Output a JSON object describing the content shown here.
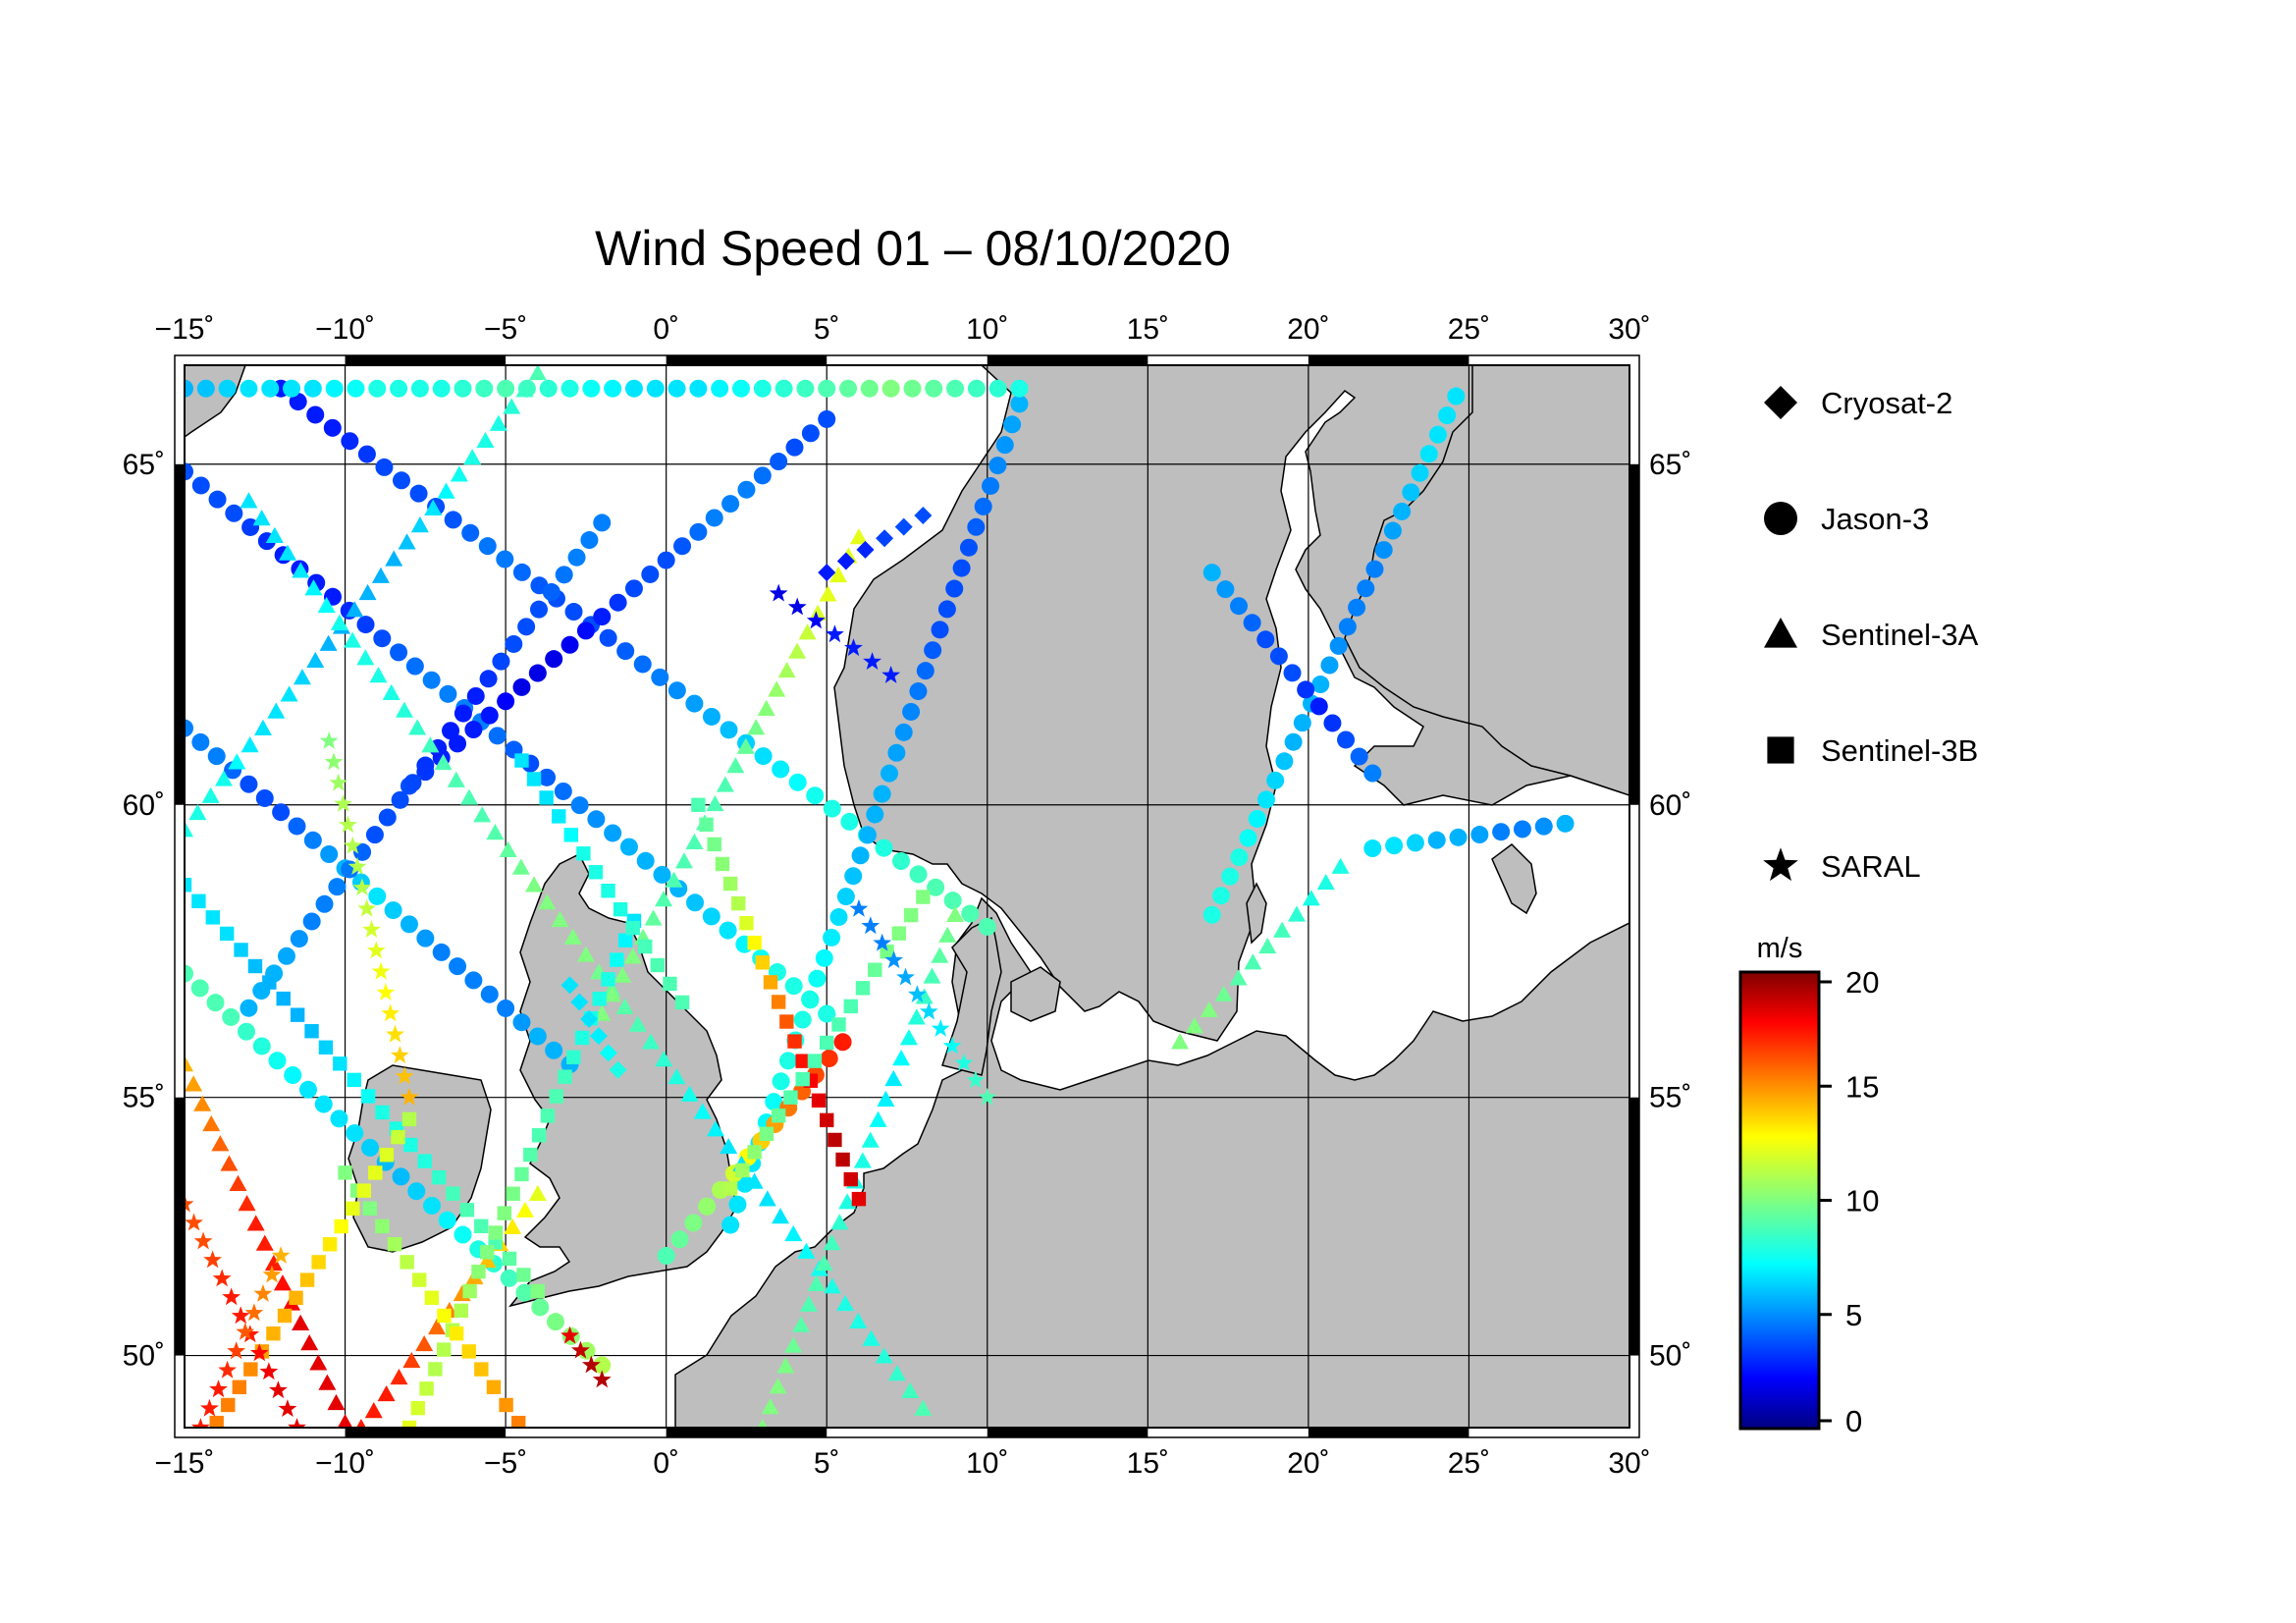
{
  "title": "Wind Speed 01 – 08/10/2020",
  "map": {
    "lon_range": [
      -15,
      30
    ],
    "lat_range": [
      48.5,
      66.3
    ],
    "lon_ticks": [
      -15,
      -10,
      -5,
      0,
      5,
      10,
      15,
      20,
      25,
      30
    ],
    "lat_ticks": [
      50,
      55,
      60,
      65
    ],
    "lon_tick_labels": [
      "−15˚",
      "−10˚",
      "−5˚",
      "0˚",
      "5˚",
      "10˚",
      "15˚",
      "20˚",
      "25˚",
      "30˚"
    ],
    "lat_tick_labels": [
      "50˚",
      "55˚",
      "60˚",
      "65˚"
    ],
    "land_color": "#bebebe",
    "sea_color": "#ffffff"
  },
  "legend": {
    "items": [
      {
        "label": "Cryosat-2",
        "marker": "diamond"
      },
      {
        "label": "Jason-3",
        "marker": "circle"
      },
      {
        "label": "Sentinel-3A",
        "marker": "triangle"
      },
      {
        "label": "Sentinel-3B",
        "marker": "square"
      },
      {
        "label": "SARAL",
        "marker": "star"
      }
    ]
  },
  "colorbar": {
    "unit": "m/s",
    "min": 0,
    "max": 20,
    "ticks": [
      "0",
      "5",
      "10",
      "15",
      "20"
    ],
    "tick_values": [
      0,
      5,
      10,
      15,
      20
    ],
    "colormap": "jet"
  },
  "tracks": [
    {
      "satellite": "Jason-3",
      "marker": "circle",
      "start": [
        -15,
        61.2
      ],
      "end": [
        -3,
        55.6
      ],
      "speeds": [
        5,
        5,
        4,
        4,
        5,
        6,
        7,
        6,
        5,
        5,
        5,
        6,
        6
      ]
    },
    {
      "satellite": "Jason-3",
      "marker": "circle",
      "start": [
        -15,
        64.9
      ],
      "end": [
        5,
        56.5
      ],
      "speeds": [
        4,
        4,
        3,
        3,
        4,
        5,
        5,
        4,
        5,
        6,
        6,
        7,
        8,
        8
      ]
    },
    {
      "satellite": "Jason-3",
      "marker": "circle",
      "start": [
        -12,
        66
      ],
      "end": [
        10,
        58
      ],
      "speeds": [
        3,
        3,
        4,
        4,
        5,
        4,
        4,
        5,
        6,
        7,
        8,
        8,
        9,
        9
      ]
    },
    {
      "satellite": "Jason-3",
      "marker": "circle",
      "start": [
        -8,
        60.3
      ],
      "end": [
        5,
        65.6
      ],
      "speeds": [
        4,
        3,
        3,
        2,
        2,
        3,
        4,
        4,
        5,
        5,
        4,
        4
      ]
    },
    {
      "satellite": "Jason-3",
      "marker": "circle",
      "start": [
        -13,
        56.6
      ],
      "end": [
        -2,
        64.2
      ],
      "speeds": [
        6,
        6,
        5,
        5,
        4,
        4,
        3,
        3,
        4,
        4,
        5,
        5
      ]
    },
    {
      "satellite": "Jason-3",
      "marker": "circle",
      "start": [
        2,
        52.6
      ],
      "end": [
        11,
        65.8
      ],
      "speeds": [
        7,
        7,
        8,
        8,
        7,
        6,
        6,
        5,
        4,
        4,
        5,
        6
      ]
    },
    {
      "satellite": "Jason-3",
      "marker": "circle",
      "start": [
        -15,
        57.2
      ],
      "end": [
        -2,
        49.8
      ],
      "speeds": [
        9,
        9,
        8,
        7,
        7,
        6,
        7,
        8,
        9,
        10,
        11
      ]
    },
    {
      "satellite": "Jason-3",
      "marker": "circle",
      "start": [
        17,
        58.2
      ],
      "end": [
        24.6,
        65.9
      ],
      "speeds": [
        8,
        8,
        7,
        6,
        6,
        5,
        5,
        6,
        7,
        7
      ]
    },
    {
      "satellite": "Jason-3",
      "marker": "circle",
      "start": [
        17,
        63.5
      ],
      "end": [
        22,
        60.5
      ],
      "speeds": [
        6,
        5,
        4,
        4,
        3,
        4,
        5
      ]
    },
    {
      "satellite": "Jason-3",
      "marker": "circle",
      "start": [
        22,
        59.3
      ],
      "end": [
        28,
        59.7
      ],
      "speeds": [
        7,
        7,
        6,
        6,
        5,
        5,
        6
      ]
    },
    {
      "satellite": "Jason-3",
      "marker": "circle",
      "start": [
        -15,
        66
      ],
      "end": [
        11,
        66
      ],
      "speeds": [
        6,
        7,
        7,
        8,
        8,
        9,
        8,
        7,
        7,
        8,
        9,
        10,
        9,
        8
      ]
    },
    {
      "satellite": "Jason-3",
      "marker": "circle",
      "start": [
        0,
        52
      ],
      "end": [
        5.5,
        56
      ],
      "speeds": [
        9,
        10,
        11,
        13,
        15,
        16,
        17
      ]
    },
    {
      "satellite": "Sentinel-3A",
      "marker": "triangle",
      "start": [
        -15,
        59.6
      ],
      "end": [
        -4,
        66.2
      ],
      "speeds": [
        8,
        8,
        7,
        7,
        6,
        6,
        6,
        7,
        8,
        8,
        9
      ]
    },
    {
      "satellite": "Sentinel-3A",
      "marker": "triangle",
      "start": [
        -13,
        64.5
      ],
      "end": [
        8,
        48.9
      ],
      "speeds": [
        7,
        7,
        8,
        8,
        9,
        9,
        10,
        10,
        9,
        8,
        7,
        7,
        8,
        8,
        9
      ]
    },
    {
      "satellite": "Sentinel-3A",
      "marker": "triangle",
      "start": [
        -15,
        55.6
      ],
      "end": [
        -10,
        48.6
      ],
      "speeds": [
        14,
        15,
        16,
        17,
        17,
        18,
        18,
        18
      ]
    },
    {
      "satellite": "Sentinel-3A",
      "marker": "triangle",
      "start": [
        -9.5,
        48.5
      ],
      "end": [
        -4,
        53.2
      ],
      "speeds": [
        17,
        17,
        16,
        15,
        14,
        13,
        12
      ]
    },
    {
      "satellite": "Sentinel-3A",
      "marker": "triangle",
      "start": [
        3,
        48.5
      ],
      "end": [
        9,
        58.2
      ],
      "speeds": [
        10,
        10,
        9,
        9,
        8,
        8,
        7,
        8,
        9,
        10
      ]
    },
    {
      "satellite": "Sentinel-3A",
      "marker": "triangle",
      "start": [
        16,
        56
      ],
      "end": [
        21,
        59
      ],
      "speeds": [
        10,
        10,
        9,
        9,
        8,
        8
      ]
    },
    {
      "satellite": "Sentinel-3A",
      "marker": "triangle",
      "start": [
        -2,
        56.5
      ],
      "end": [
        6,
        64
      ],
      "speeds": [
        10,
        10,
        9,
        9,
        9,
        10,
        11,
        12,
        12
      ]
    },
    {
      "satellite": "Sentinel-3B",
      "marker": "square",
      "start": [
        -15,
        58.7
      ],
      "end": [
        -4,
        51.3
      ],
      "speeds": [
        7,
        7,
        6,
        6,
        7,
        8,
        8,
        9,
        9,
        10
      ]
    },
    {
      "satellite": "Sentinel-3B",
      "marker": "square",
      "start": [
        -8,
        48.5
      ],
      "end": [
        -1,
        58.1
      ],
      "speeds": [
        12,
        11,
        11,
        10,
        10,
        9,
        9,
        8,
        8,
        7
      ]
    },
    {
      "satellite": "Sentinel-3B",
      "marker": "square",
      "start": [
        1,
        60
      ],
      "end": [
        6,
        53.1
      ],
      "speeds": [
        9,
        10,
        11,
        13,
        15,
        17,
        18,
        19,
        18
      ]
    },
    {
      "satellite": "Sentinel-3B",
      "marker": "square",
      "start": [
        8,
        58.5
      ],
      "end": [
        2,
        53.3
      ],
      "speeds": [
        10,
        10,
        9,
        9,
        9,
        10,
        11
      ]
    },
    {
      "satellite": "Sentinel-3B",
      "marker": "square",
      "start": [
        -10,
        53.6
      ],
      "end": [
        -4.6,
        48.6
      ],
      "speeds": [
        10,
        10,
        11,
        12,
        13,
        14,
        15
      ]
    },
    {
      "satellite": "Sentinel-3B",
      "marker": "square",
      "start": [
        -14,
        48.6
      ],
      "end": [
        -8,
        54.6
      ],
      "speeds": [
        15,
        15,
        14,
        14,
        13,
        12,
        12,
        11
      ]
    },
    {
      "satellite": "Sentinel-3B",
      "marker": "square",
      "start": [
        -4.5,
        60.7
      ],
      "end": [
        0.5,
        56.7
      ],
      "speeds": [
        7,
        7,
        8,
        8,
        9,
        9
      ]
    },
    {
      "satellite": "SARAL",
      "marker": "star",
      "start": [
        -15,
        53
      ],
      "end": [
        -11.5,
        48.5
      ],
      "speeds": [
        16,
        16,
        17,
        17,
        18,
        18
      ]
    },
    {
      "satellite": "SARAL",
      "marker": "star",
      "start": [
        -14.5,
        48.5
      ],
      "end": [
        -12,
        52
      ],
      "speeds": [
        17,
        17,
        16,
        15,
        14
      ]
    },
    {
      "satellite": "SARAL",
      "marker": "star",
      "start": [
        6,
        58.3
      ],
      "end": [
        10,
        55
      ],
      "speeds": [
        5,
        5,
        6,
        7,
        8,
        9
      ]
    },
    {
      "satellite": "SARAL",
      "marker": "star",
      "start": [
        3.5,
        63.2
      ],
      "end": [
        7,
        62
      ],
      "speeds": [
        2,
        2,
        3,
        3,
        3
      ]
    },
    {
      "satellite": "SARAL",
      "marker": "star",
      "start": [
        -10.5,
        61
      ],
      "end": [
        -8,
        55
      ],
      "speeds": [
        10,
        11,
        11,
        12,
        13,
        14
      ]
    },
    {
      "satellite": "SARAL",
      "marker": "star",
      "start": [
        -3,
        50.4
      ],
      "end": [
        -2,
        49.5
      ],
      "speeds": [
        18,
        19,
        19
      ]
    },
    {
      "satellite": "Cryosat-2",
      "marker": "diamond",
      "start": [
        5,
        63.5
      ],
      "end": [
        8,
        64.3
      ],
      "speeds": [
        3,
        3,
        4,
        4
      ]
    },
    {
      "satellite": "Cryosat-2",
      "marker": "diamond",
      "start": [
        -3,
        57
      ],
      "end": [
        -1.5,
        55.5
      ],
      "speeds": [
        7,
        7,
        8
      ]
    }
  ]
}
